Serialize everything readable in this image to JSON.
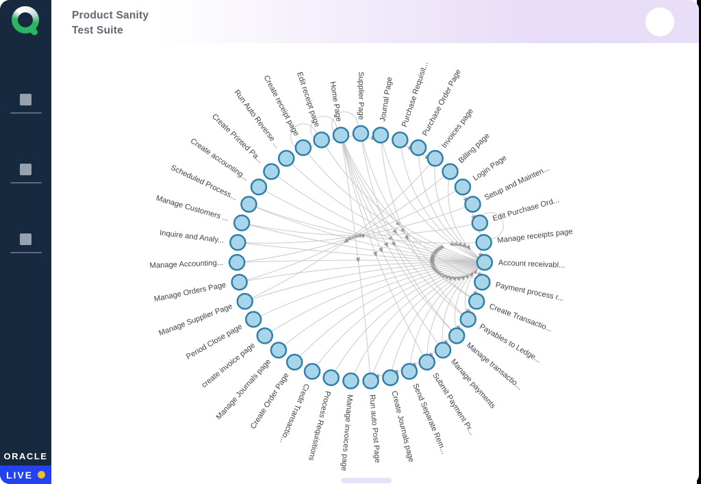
{
  "header": {
    "title_line1": "Product Sanity",
    "title_line2": "Test Suite"
  },
  "sidebar": {
    "logo": "Q-brand-logo",
    "items": [
      {
        "icon": "menu-placeholder-square"
      },
      {
        "icon": "menu-placeholder-square"
      },
      {
        "icon": "menu-placeholder-square"
      }
    ],
    "oracle_label": "ORACLE",
    "live_label": "LIVE"
  },
  "colors": {
    "sidebar_bg": "#16293f",
    "header_lavender": "#e8dcf7",
    "live_blue": "#2342f2",
    "live_dot_yellow": "#f2c01c",
    "brand_green": "#2ab565"
  },
  "chart_data": {
    "type": "network",
    "title": "",
    "layout": {
      "center": [
        452,
        313
      ],
      "radius": 181,
      "node_radius": 11,
      "label_offset": 20,
      "node_fill": "#a9d5ea",
      "node_stroke": "#2f7fa9",
      "edge_color": "#c9c9c9",
      "arrow_color": "#9a9a9a",
      "label_color": "#3d4246",
      "label_font_size": 11.2
    },
    "nodes": [
      "Supplier Page",
      "Journal Page",
      "Purchase Requisit...",
      "Purchase Order Page",
      "Invoices page",
      "Billing page",
      "Login Page",
      "Setup and Mainten...",
      "Edit Purchase Ord...",
      "Manage receipts page",
      "Account receivabl...",
      "Payment process r...",
      "Create Transactio...",
      "Payables to Ledge...",
      "Manage transactio...",
      "Manage payments",
      "Submit Payment Pr...",
      "Send Separate Rem...",
      "Create Journals page",
      "Run auto Post Page",
      "Manage invoices page",
      "Process Requisitions",
      "Credit Transactio...",
      "Create Order Page",
      "Manage Journals page",
      "create invoice page",
      "Period Close page",
      "Manage Supplier Page",
      "Manage Orders Page",
      "Manage Accounting...",
      "Inquire and Analy...",
      "Manage Customers ...",
      "Scheduled Process...",
      "Create accounting...",
      "Create Printed Pa...",
      "Run Auto Reverse ...",
      "Create receipt page",
      "Edit receipt page",
      "Home Page"
    ],
    "edges": [
      [
        1,
        10
      ],
      [
        2,
        10
      ],
      [
        3,
        10
      ],
      [
        4,
        10
      ],
      [
        5,
        10
      ],
      [
        13,
        10
      ],
      [
        14,
        10
      ],
      [
        15,
        10
      ],
      [
        16,
        10
      ],
      [
        17,
        10
      ],
      [
        18,
        10
      ],
      [
        19,
        10
      ],
      [
        20,
        10
      ],
      [
        21,
        10
      ],
      [
        22,
        10
      ],
      [
        23,
        10
      ],
      [
        24,
        10
      ],
      [
        25,
        10
      ],
      [
        26,
        10
      ],
      [
        27,
        10
      ],
      [
        28,
        10
      ],
      [
        29,
        10
      ],
      [
        30,
        10
      ],
      [
        31,
        10
      ],
      [
        32,
        10
      ],
      [
        33,
        10
      ],
      [
        34,
        10
      ],
      [
        35,
        10
      ],
      [
        36,
        10
      ],
      [
        37,
        10
      ],
      [
        38,
        11
      ],
      [
        38,
        12
      ],
      [
        38,
        13
      ],
      [
        38,
        14
      ],
      [
        38,
        15
      ],
      [
        38,
        16
      ],
      [
        38,
        19
      ],
      [
        0,
        12
      ],
      [
        0,
        14
      ],
      [
        1,
        13
      ],
      [
        6,
        29
      ],
      [
        7,
        30
      ],
      [
        8,
        31
      ],
      [
        5,
        28
      ],
      [
        9,
        32
      ],
      [
        4,
        27
      ],
      [
        0,
        1
      ],
      [
        2,
        3
      ],
      [
        3,
        4
      ],
      [
        6,
        7
      ],
      [
        7,
        8
      ],
      [
        9,
        10
      ],
      [
        10,
        11
      ],
      [
        11,
        12
      ],
      [
        12,
        13
      ],
      [
        13,
        14
      ],
      [
        14,
        15
      ],
      [
        15,
        16
      ],
      [
        16,
        17
      ],
      [
        17,
        18
      ],
      [
        18,
        19
      ]
    ],
    "self_loops": [
      0,
      9,
      37,
      38
    ]
  }
}
